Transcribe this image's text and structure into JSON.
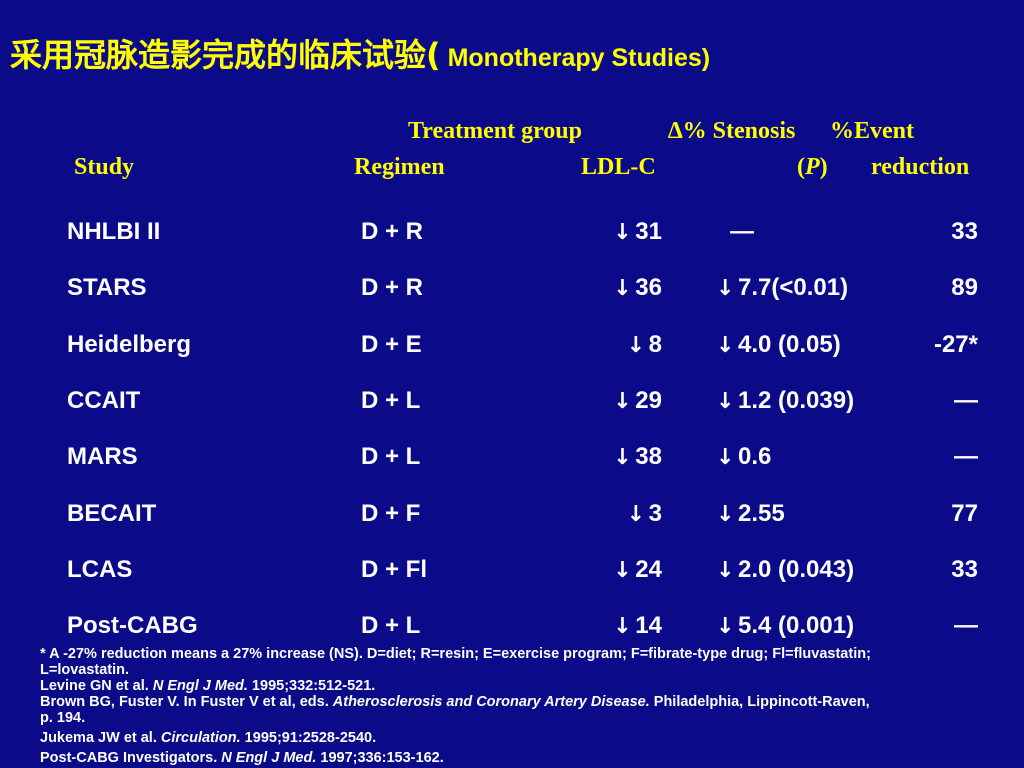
{
  "title": {
    "zh": "采用冠脉造影完成的临床试验",
    "paren_open": "(",
    "en": " Monotherapy Studies)"
  },
  "header": {
    "treatment_group": "Treatment group",
    "stenosis": "∆% Stenosis",
    "event": "%Event",
    "study": "Study",
    "regimen": "Regimen",
    "ldl": "LDL-C",
    "p_open": "(",
    "p": "P",
    "p_close": ")",
    "reduction": "reduction"
  },
  "rows": [
    {
      "study": "NHLBI II",
      "regimen": "D + R",
      "ldl_arrow": "↓",
      "ldl": "31",
      "sten_arrow": "",
      "sten": "—",
      "event": "33"
    },
    {
      "study": "STARS",
      "regimen": "D + R",
      "ldl_arrow": "↓",
      "ldl": "36",
      "sten_arrow": "↓",
      "sten": "7.7(<0.01)",
      "event": "89"
    },
    {
      "study": "Heidelberg",
      "regimen": "D + E",
      "ldl_arrow": "↓",
      "ldl": "8",
      "sten_arrow": "↓",
      "sten": "4.0 (0.05)",
      "event": "-27*"
    },
    {
      "study": "CCAIT",
      "regimen": "D + L",
      "ldl_arrow": "↓",
      "ldl": "29",
      "sten_arrow": "↓",
      "sten": "1.2 (0.039)",
      "event": "—"
    },
    {
      "study": "MARS",
      "regimen": "D + L",
      "ldl_arrow": "↓",
      "ldl": "38",
      "sten_arrow": "↓",
      "sten": "0.6",
      "event": "—"
    },
    {
      "study": "BECAIT",
      "regimen": "D + F",
      "ldl_arrow": "↓",
      "ldl": "3",
      "sten_arrow": "↓",
      "sten": "2.55",
      "event": "77"
    },
    {
      "study": "LCAS",
      "regimen": "D + Fl",
      "ldl_arrow": "↓",
      "ldl": "24",
      "sten_arrow": "↓",
      "sten": "2.0 (0.043)",
      "event": "33"
    },
    {
      "study": "Post-CABG",
      "regimen": "D + L",
      "ldl_arrow": "↓",
      "ldl": "14",
      "sten_arrow": "↓",
      "sten": "5.4 (0.001)",
      "event": "—"
    }
  ],
  "notes": {
    "footnote": "* A -27% reduction means a 27% increase (NS). D=diet; R=resin; E=exercise program; F=fibrate-type drug; Fl=fluvastatin; L=lovastatin.",
    "ref1_a": "Levine GN et al. ",
    "ref1_journal": "N Engl J Med.",
    "ref1_b": " 1995;332:512-521.",
    "ref2_a": "Brown BG, Fuster V. In Fuster V et al, eds. ",
    "ref2_book": "Atherosclerosis and Coronary Artery Disease.",
    "ref2_b": " Philadelphia, Lippincott-Raven, p. 194.",
    "ref3_a": "Jukema JW et al. ",
    "ref3_journal": "Circulation.",
    "ref3_b": " 1995;91:2528-2540.",
    "ref4_a": "Post-CABG Investigators. ",
    "ref4_journal": "N Engl J Med.",
    "ref4_b": " 1997;336:153-162."
  }
}
